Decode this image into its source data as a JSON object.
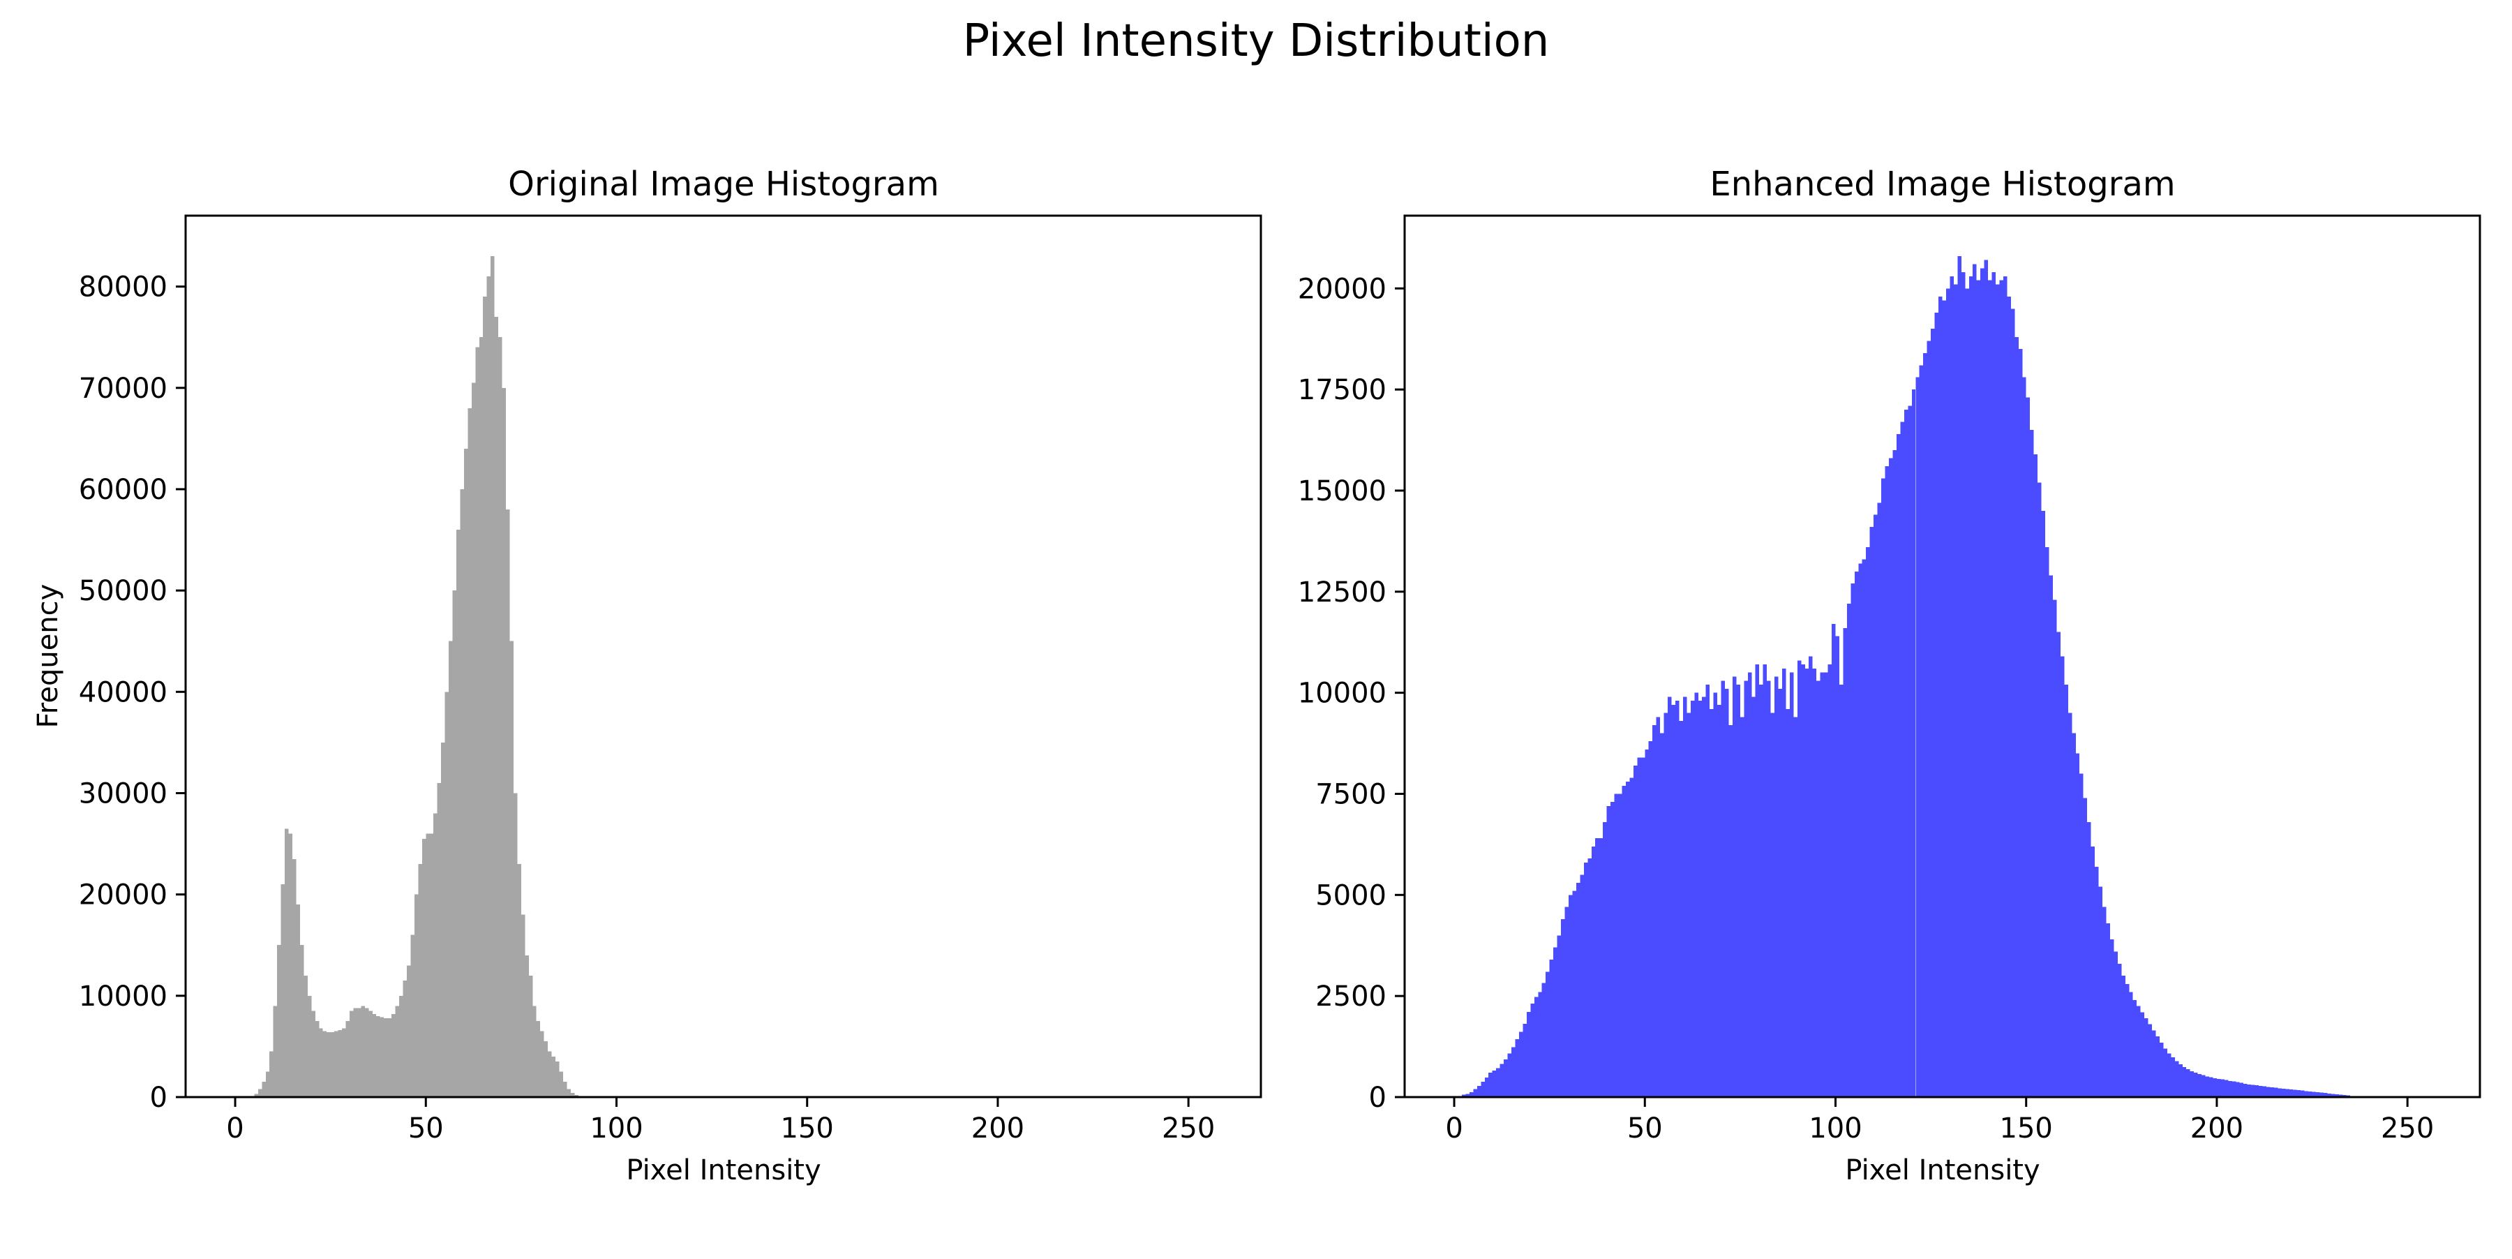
{
  "figure": {
    "suptitle": "Pixel Intensity Distribution"
  },
  "chart_data": [
    {
      "type": "bar",
      "title": "Original Image Histogram",
      "xlabel": "Pixel Intensity",
      "ylabel": "Frequency",
      "xlim": [
        -13,
        269
      ],
      "ylim": [
        0,
        87000
      ],
      "xticks": [
        0,
        50,
        100,
        150,
        200,
        250
      ],
      "yticks": [
        0,
        10000,
        20000,
        30000,
        40000,
        50000,
        60000,
        70000,
        80000
      ],
      "grid": false,
      "color": "#a6a6a6",
      "bin_start": 0,
      "bin_width": 1,
      "values": [
        0,
        0,
        0,
        0,
        0,
        300,
        800,
        1500,
        2500,
        4500,
        9000,
        15000,
        21000,
        26500,
        26000,
        23500,
        19000,
        15000,
        12000,
        10000,
        8500,
        7500,
        6800,
        6500,
        6400,
        6400,
        6500,
        6600,
        6800,
        7500,
        8500,
        8800,
        8800,
        9000,
        8800,
        8500,
        8200,
        8000,
        7900,
        7800,
        7800,
        8200,
        9000,
        10000,
        11500,
        13000,
        16000,
        20000,
        23000,
        25500,
        26000,
        26000,
        28000,
        31000,
        35000,
        40000,
        45000,
        50000,
        56000,
        60000,
        64000,
        68000,
        70500,
        74000,
        75000,
        79000,
        81000,
        83000,
        77000,
        75000,
        70000,
        58000,
        45000,
        30000,
        23000,
        18000,
        14000,
        12000,
        9000,
        7500,
        6500,
        5500,
        4500,
        4000,
        3500,
        2500,
        1500,
        800,
        400,
        200,
        100,
        50,
        0,
        0,
        0,
        0,
        0,
        0,
        0,
        0,
        0,
        0,
        0,
        0,
        0,
        0,
        0,
        0,
        0,
        0,
        0,
        0,
        0,
        0,
        0,
        0,
        0,
        0,
        0,
        0,
        0,
        0,
        0,
        0,
        0,
        0,
        0,
        0,
        0,
        0,
        0,
        0,
        0,
        0,
        0,
        0,
        0,
        0,
        0,
        0,
        0,
        0,
        0,
        0,
        0,
        0,
        0,
        0,
        0,
        0,
        0,
        0,
        0,
        0,
        0,
        0,
        0,
        0,
        0,
        0,
        0,
        0,
        0,
        0,
        0,
        0,
        0,
        0,
        0,
        0,
        0,
        0,
        0,
        0,
        0,
        0,
        0,
        0,
        0,
        0,
        0,
        0,
        0,
        0,
        0,
        0,
        0,
        0,
        0,
        0,
        0,
        0,
        0,
        0,
        0,
        0,
        0,
        0,
        0,
        0,
        0,
        0,
        0,
        0,
        0,
        0,
        0,
        0,
        0,
        0,
        0,
        0,
        0,
        0,
        0,
        0,
        0,
        0,
        0,
        0,
        0,
        0,
        0,
        0,
        0,
        0,
        0,
        0,
        0,
        0,
        0,
        0,
        0,
        0,
        0,
        0,
        0,
        0,
        0,
        0,
        0,
        0,
        0,
        0,
        0,
        0,
        0,
        0,
        0,
        0,
        0,
        0,
        0,
        0,
        0,
        0,
        0,
        0,
        0,
        0,
        0,
        0,
        0,
        0,
        0,
        0,
        0,
        0,
        0,
        0,
        0
      ]
    },
    {
      "type": "bar",
      "title": "Enhanced Image Histogram",
      "xlabel": "Pixel Intensity",
      "ylabel": "",
      "xlim": [
        -13,
        269
      ],
      "ylim": [
        0,
        21800
      ],
      "xticks": [
        0,
        50,
        100,
        150,
        200,
        250
      ],
      "yticks": [
        0,
        2500,
        5000,
        7500,
        10000,
        12500,
        15000,
        17500,
        20000
      ],
      "grid": false,
      "color": "#4b4bff",
      "bin_start": 0,
      "bin_width": 1,
      "values": [
        0,
        0,
        60,
        80,
        120,
        200,
        280,
        380,
        480,
        600,
        660,
        720,
        820,
        930,
        1080,
        1230,
        1430,
        1610,
        1810,
        2110,
        2310,
        2480,
        2600,
        2820,
        3100,
        3400,
        3700,
        4000,
        4400,
        4700,
        5000,
        5100,
        5300,
        5500,
        5800,
        5900,
        6200,
        6400,
        6400,
        6800,
        7200,
        7300,
        7500,
        7500,
        7700,
        7800,
        7900,
        8200,
        8400,
        8400,
        8600,
        8800,
        9200,
        9400,
        9000,
        9500,
        9900,
        9700,
        9800,
        9300,
        9900,
        9500,
        9800,
        10000,
        9800,
        9900,
        10200,
        9600,
        10000,
        9700,
        10300,
        10100,
        9200,
        10400,
        10200,
        9400,
        10300,
        10500,
        9900,
        10700,
        10200,
        10700,
        10300,
        9500,
        10400,
        10100,
        10600,
        9600,
        10500,
        9400,
        10800,
        10700,
        10600,
        10900,
        10600,
        10300,
        10500,
        10500,
        10700,
        11700,
        11400,
        10200,
        11600,
        12200,
        12700,
        13000,
        13200,
        13300,
        13600,
        14100,
        14400,
        14700,
        15300,
        15600,
        15800,
        16000,
        16400,
        16700,
        17000,
        17100,
        17500,
        17800,
        18100,
        18400,
        18700,
        19000,
        19400,
        19800,
        19700,
        20000,
        20300,
        20100,
        20800,
        20400,
        20000,
        20300,
        20600,
        20200,
        20500,
        20700,
        20200,
        20400,
        20100,
        20200,
        20300,
        19800,
        19500,
        18800,
        18500,
        17800,
        17300,
        16500,
        15900,
        15200,
        14500,
        13600,
        12900,
        12300,
        11500,
        10900,
        10200,
        9500,
        9000,
        8500,
        8000,
        7400,
        6800,
        6200,
        5700,
        5200,
        4700,
        4300,
        3900,
        3600,
        3300,
        3000,
        2800,
        2600,
        2400,
        2250,
        2100,
        1950,
        1800,
        1650,
        1500,
        1350,
        1200,
        1080,
        980,
        890,
        810,
        740,
        690,
        640,
        600,
        570,
        540,
        510,
        490,
        470,
        450,
        440,
        420,
        400,
        390,
        370,
        350,
        330,
        310,
        300,
        290,
        280,
        270,
        250,
        240,
        230,
        220,
        210,
        200,
        190,
        180,
        170,
        160,
        150,
        140,
        130,
        120,
        110,
        100,
        90,
        80,
        70,
        60,
        50,
        40,
        30,
        20,
        10,
        0,
        0
      ]
    }
  ]
}
